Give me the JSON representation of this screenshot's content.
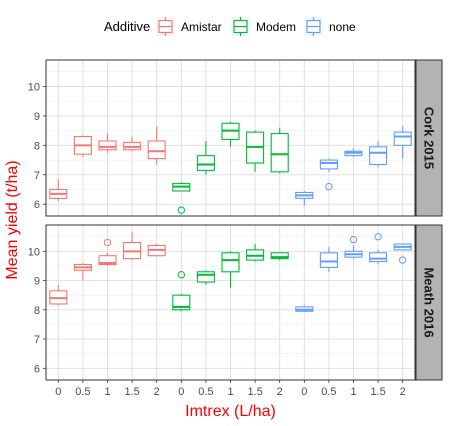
{
  "chart_data": {
    "type": "boxplot",
    "xlabel": "Imtrex (L/ha)",
    "ylabel": "Mean yield (t/ha)",
    "x_tick_labels": [
      "0",
      "0.5",
      "1",
      "1.5",
      "2",
      "0",
      "0.5",
      "1",
      "1.5",
      "2",
      "0",
      "0.5",
      "1",
      "1.5",
      "2"
    ],
    "ylim": [
      5.6,
      10.9
    ],
    "y_ticks": [
      "6",
      "7",
      "8",
      "9",
      "10"
    ],
    "grid": true,
    "legend": {
      "title": "Additive",
      "position": "top",
      "entries": [
        {
          "name": "Amistar",
          "color": "#F8766D"
        },
        {
          "name": "Modem",
          "color": "#00BA38"
        },
        {
          "name": "none",
          "color": "#619CFF"
        }
      ]
    },
    "panels": [
      {
        "strip": "Cork 2015",
        "boxes": [
          {
            "additive": "Amistar",
            "dose": "0",
            "min": 6.1,
            "q1": 6.2,
            "median": 6.35,
            "q3": 6.5,
            "max": 6.85,
            "outliers": []
          },
          {
            "additive": "Amistar",
            "dose": "0.5",
            "min": 7.6,
            "q1": 7.7,
            "median": 8.0,
            "q3": 8.3,
            "max": 8.35,
            "outliers": []
          },
          {
            "additive": "Amistar",
            "dose": "1",
            "min": 7.75,
            "q1": 7.85,
            "median": 7.95,
            "q3": 8.15,
            "max": 8.4,
            "outliers": []
          },
          {
            "additive": "Amistar",
            "dose": "1.5",
            "min": 7.8,
            "q1": 7.85,
            "median": 7.95,
            "q3": 8.1,
            "max": 8.3,
            "outliers": []
          },
          {
            "additive": "Amistar",
            "dose": "2",
            "min": 7.35,
            "q1": 7.55,
            "median": 7.8,
            "q3": 8.15,
            "max": 8.65,
            "outliers": []
          },
          {
            "additive": "Modem",
            "dose": "0",
            "min": 6.45,
            "q1": 6.45,
            "median": 6.6,
            "q3": 6.7,
            "max": 6.75,
            "outliers": [
              5.8
            ]
          },
          {
            "additive": "Modem",
            "dose": "0.5",
            "min": 7.0,
            "q1": 7.15,
            "median": 7.35,
            "q3": 7.65,
            "max": 8.15,
            "outliers": []
          },
          {
            "additive": "Modem",
            "dose": "1",
            "min": 7.95,
            "q1": 8.2,
            "median": 8.5,
            "q3": 8.75,
            "max": 8.8,
            "outliers": []
          },
          {
            "additive": "Modem",
            "dose": "1.5",
            "min": 7.1,
            "q1": 7.4,
            "median": 7.95,
            "q3": 8.45,
            "max": 8.5,
            "outliers": []
          },
          {
            "additive": "Modem",
            "dose": "2",
            "min": 7.05,
            "q1": 7.1,
            "median": 7.7,
            "q3": 8.4,
            "max": 8.6,
            "outliers": []
          },
          {
            "additive": "none",
            "dose": "0",
            "min": 5.95,
            "q1": 6.2,
            "median": 6.3,
            "q3": 6.4,
            "max": 6.45,
            "outliers": []
          },
          {
            "additive": "none",
            "dose": "0.5",
            "min": 7.1,
            "q1": 7.2,
            "median": 7.4,
            "q3": 7.5,
            "max": 7.55,
            "outliers": [
              6.6
            ]
          },
          {
            "additive": "none",
            "dose": "1",
            "min": 7.6,
            "q1": 7.65,
            "median": 7.75,
            "q3": 7.8,
            "max": 7.9,
            "outliers": []
          },
          {
            "additive": "none",
            "dose": "1.5",
            "min": 7.25,
            "q1": 7.35,
            "median": 7.75,
            "q3": 7.95,
            "max": 8.15,
            "outliers": []
          },
          {
            "additive": "none",
            "dose": "2",
            "min": 7.55,
            "q1": 8.0,
            "median": 8.3,
            "q3": 8.45,
            "max": 8.65,
            "outliers": []
          }
        ]
      },
      {
        "strip": "Meath 2016",
        "boxes": [
          {
            "additive": "Amistar",
            "dose": "0",
            "min": 8.15,
            "q1": 8.2,
            "median": 8.4,
            "q3": 8.65,
            "max": 8.85,
            "outliers": []
          },
          {
            "additive": "Amistar",
            "dose": "0.5",
            "min": 9.0,
            "q1": 9.35,
            "median": 9.45,
            "q3": 9.55,
            "max": 9.6,
            "outliers": []
          },
          {
            "additive": "Amistar",
            "dose": "1",
            "min": 9.5,
            "q1": 9.55,
            "median": 9.6,
            "q3": 9.85,
            "max": 9.95,
            "outliers": [
              10.3
            ]
          },
          {
            "additive": "Amistar",
            "dose": "1.5",
            "min": 9.7,
            "q1": 9.75,
            "median": 10.0,
            "q3": 10.3,
            "max": 10.65,
            "outliers": []
          },
          {
            "additive": "Amistar",
            "dose": "2",
            "min": 9.85,
            "q1": 9.85,
            "median": 10.05,
            "q3": 10.2,
            "max": 10.25,
            "outliers": []
          },
          {
            "additive": "Modem",
            "dose": "0",
            "min": 7.95,
            "q1": 8.0,
            "median": 8.1,
            "q3": 8.5,
            "max": 8.55,
            "outliers": [
              9.2
            ]
          },
          {
            "additive": "Modem",
            "dose": "0.5",
            "min": 8.85,
            "q1": 8.95,
            "median": 9.2,
            "q3": 9.3,
            "max": 9.35,
            "outliers": []
          },
          {
            "additive": "Modem",
            "dose": "1",
            "min": 8.75,
            "q1": 9.3,
            "median": 9.7,
            "q3": 9.95,
            "max": 10.0,
            "outliers": []
          },
          {
            "additive": "Modem",
            "dose": "1.5",
            "min": 9.65,
            "q1": 9.7,
            "median": 9.85,
            "q3": 10.05,
            "max": 10.25,
            "outliers": []
          },
          {
            "additive": "Modem",
            "dose": "2",
            "min": 9.7,
            "q1": 9.75,
            "median": 9.8,
            "q3": 9.95,
            "max": 9.95,
            "outliers": []
          },
          {
            "additive": "none",
            "dose": "0",
            "min": 7.95,
            "q1": 7.95,
            "median": 8.0,
            "q3": 8.1,
            "max": 8.15,
            "outliers": []
          },
          {
            "additive": "none",
            "dose": "0.5",
            "min": 9.3,
            "q1": 9.45,
            "median": 9.65,
            "q3": 9.95,
            "max": 10.15,
            "outliers": []
          },
          {
            "additive": "none",
            "dose": "1",
            "min": 9.75,
            "q1": 9.8,
            "median": 9.9,
            "q3": 10.0,
            "max": 10.2,
            "outliers": [
              10.4
            ]
          },
          {
            "additive": "none",
            "dose": "1.5",
            "min": 9.55,
            "q1": 9.65,
            "median": 9.75,
            "q3": 9.95,
            "max": 10.05,
            "outliers": [
              10.5
            ]
          },
          {
            "additive": "none",
            "dose": "2",
            "min": 10.05,
            "q1": 10.05,
            "median": 10.15,
            "q3": 10.25,
            "max": 10.25,
            "outliers": [
              9.7
            ]
          }
        ]
      }
    ]
  },
  "colors": {
    "Amistar": "#F8766D",
    "Modem": "#00BA38",
    "none": "#619CFF",
    "axis_title": "#FF0000",
    "strip_fill": "#B3B3B3"
  }
}
